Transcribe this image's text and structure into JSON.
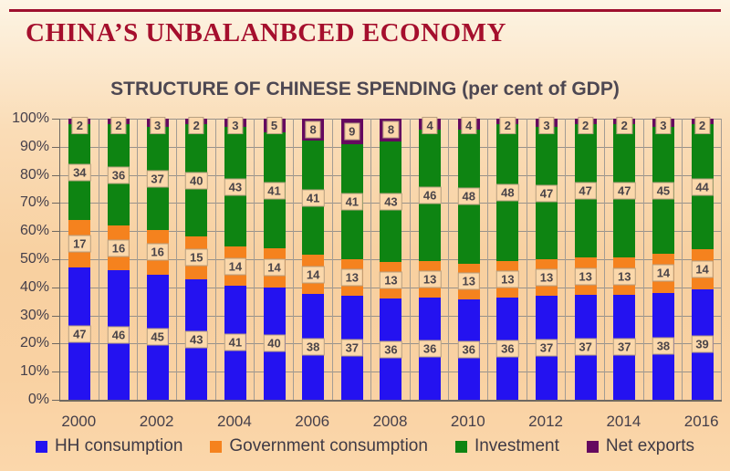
{
  "page": {
    "title": "CHINA’S UNBALANBCED ECONOMY",
    "subtitle": "STRUCTURE OF CHINESE SPENDING (per cent of GDP)"
  },
  "colors": {
    "title": "#a50f2d",
    "top_rule": "#9e0f2e",
    "subtitle": "#4d4752",
    "axis_text": "#453f4a",
    "legend_text": "#3f3a45",
    "hh_consumption": "#2412f0",
    "government_consumption": "#f5821e",
    "investment": "#0e8412",
    "net_exports": "#65095f",
    "data_label_bg": "#fbd8ab",
    "data_label_text": "#4a4449"
  },
  "chart_data": {
    "type": "bar",
    "stacked": true,
    "title": "STRUCTURE OF CHINESE SPENDING (per cent of GDP)",
    "xlabel": "",
    "ylabel": "",
    "ylim": [
      0,
      100
    ],
    "y_tick_step": 10,
    "y_tick_suffix": "%",
    "grid": true,
    "legend_position": "bottom",
    "x_labeled_every": 2,
    "categories": [
      "2000",
      "2001",
      "2002",
      "2003",
      "2004",
      "2005",
      "2006",
      "2007",
      "2008",
      "2009",
      "2010",
      "2011",
      "2012",
      "2013",
      "2014",
      "2015",
      "2016"
    ],
    "series": [
      {
        "name": "HH consumption",
        "color": "#2412f0",
        "values": [
          47,
          46,
          45,
          43,
          41,
          40,
          38,
          37,
          36,
          36,
          36,
          36,
          37,
          37,
          37,
          38,
          39
        ]
      },
      {
        "name": "Government consumption",
        "color": "#f5821e",
        "values": [
          17,
          16,
          16,
          15,
          14,
          14,
          14,
          13,
          13,
          13,
          13,
          13,
          13,
          13,
          13,
          14,
          14
        ]
      },
      {
        "name": "Investment",
        "color": "#0e8412",
        "values": [
          34,
          36,
          37,
          40,
          43,
          41,
          41,
          41,
          43,
          46,
          48,
          48,
          47,
          47,
          47,
          45,
          44
        ]
      },
      {
        "name": "Net exports",
        "color": "#65095f",
        "values": [
          2,
          2,
          3,
          2,
          3,
          5,
          8,
          9,
          8,
          4,
          4,
          2,
          3,
          2,
          2,
          3,
          2
        ]
      }
    ]
  }
}
